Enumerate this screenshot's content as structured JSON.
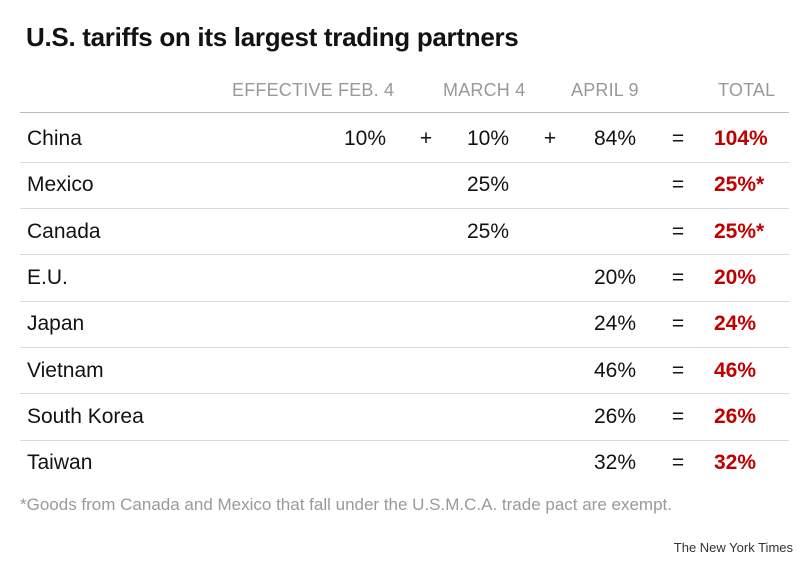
{
  "title": "U.S. tariffs on its largest trading partners",
  "chart_data": {
    "type": "table",
    "columns": [
      "EFFECTIVE FEB. 4",
      "MARCH 4",
      "APRIL 9",
      "TOTAL"
    ],
    "rows": [
      {
        "country": "China",
        "feb4": "10%",
        "plus1": "+",
        "mar4": "10%",
        "plus2": "+",
        "apr9": "84%",
        "eq": "=",
        "total": "104%"
      },
      {
        "country": "Mexico",
        "feb4": "",
        "plus1": "",
        "mar4": "25%",
        "plus2": "",
        "apr9": "",
        "eq": "=",
        "total": "25%*"
      },
      {
        "country": "Canada",
        "feb4": "",
        "plus1": "",
        "mar4": "25%",
        "plus2": "",
        "apr9": "",
        "eq": "=",
        "total": "25%*"
      },
      {
        "country": "E.U.",
        "feb4": "",
        "plus1": "",
        "mar4": "",
        "plus2": "",
        "apr9": "20%",
        "eq": "=",
        "total": "20%"
      },
      {
        "country": "Japan",
        "feb4": "",
        "plus1": "",
        "mar4": "",
        "plus2": "",
        "apr9": "24%",
        "eq": "=",
        "total": "24%"
      },
      {
        "country": "Vietnam",
        "feb4": "",
        "plus1": "",
        "mar4": "",
        "plus2": "",
        "apr9": "46%",
        "eq": "=",
        "total": "46%"
      },
      {
        "country": "South Korea",
        "feb4": "",
        "plus1": "",
        "mar4": "",
        "plus2": "",
        "apr9": "26%",
        "eq": "=",
        "total": "26%"
      },
      {
        "country": "Taiwan",
        "feb4": "",
        "plus1": "",
        "mar4": "",
        "plus2": "",
        "apr9": "32%",
        "eq": "=",
        "total": "32%"
      }
    ],
    "colors": {
      "total": "#c00000",
      "header": "#999999",
      "text": "#121212"
    }
  },
  "footnote": "*Goods from Canada and Mexico that fall under the U.S.M.C.A. trade pact are exempt.",
  "credit": "The New York Times"
}
